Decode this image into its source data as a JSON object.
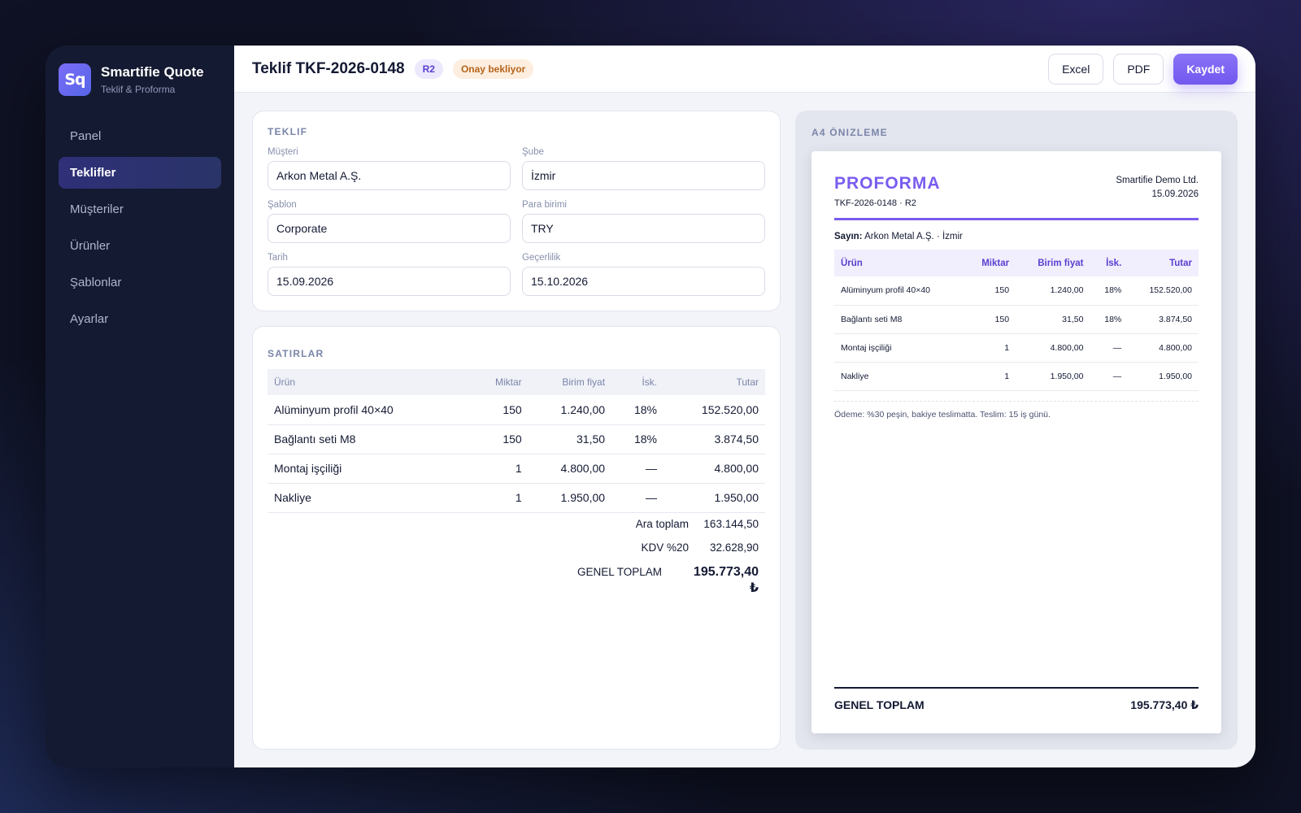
{
  "brand": {
    "logo": "Sq",
    "title": "Smartifie Quote",
    "subtitle": "Teklif & Proforma"
  },
  "sidebar": {
    "items": [
      {
        "label": "Panel",
        "active": false
      },
      {
        "label": "Teklifler",
        "active": true
      },
      {
        "label": "Müşteriler",
        "active": false
      },
      {
        "label": "Ürünler",
        "active": false
      },
      {
        "label": "Şablonlar",
        "active": false
      },
      {
        "label": "Ayarlar",
        "active": false
      }
    ]
  },
  "header": {
    "title": "Teklif TKF-2026-0148",
    "revision": "R2",
    "status": "Onay bekliyor",
    "excel_label": "Excel",
    "pdf_label": "PDF",
    "save_label": "Kaydet"
  },
  "form": {
    "section_title": "TEKLIF",
    "customer_label": "Müşteri",
    "customer_value": "Arkon Metal A.Ş.",
    "branch_label": "Şube",
    "branch_value": "İzmir",
    "template_label": "Şablon",
    "template_value": "Corporate",
    "currency_label": "Para birimi",
    "currency_value": "TRY",
    "date_label": "Tarih",
    "date_value": "15.09.2026",
    "validity_label": "Geçerlilik",
    "validity_value": "15.10.2026"
  },
  "lines": {
    "section_title": "SATIRLAR",
    "columns": [
      "Ürün",
      "Miktar",
      "Birim fiyat",
      "İsk.",
      "Tutar"
    ],
    "rows": [
      [
        "Alüminyum profil 40×40",
        "150",
        "1.240,00",
        "18%",
        "152.520,00"
      ],
      [
        "Bağlantı seti M8",
        "150",
        "31,50",
        "18%",
        "3.874,50"
      ],
      [
        "Montaj işçiliği",
        "1",
        "4.800,00",
        "—",
        "4.800,00"
      ],
      [
        "Nakliye",
        "1",
        "1.950,00",
        "—",
        "1.950,00"
      ]
    ],
    "subtotal_label": "Ara toplam",
    "subtotal_value": "163.144,50",
    "vat_label": "KDV %20",
    "vat_value": "32.628,90",
    "grand_label": "GENEL TOPLAM",
    "grand_value": "195.773,40 ₺"
  },
  "preview": {
    "section_title": "A4 ÖNIZLEME",
    "doc_title": "PROFORMA",
    "doc_ref": "TKF-2026-0148 · R2",
    "company": "Smartifie Demo Ltd.",
    "doc_date": "15.09.2026",
    "salutation_label": "Sayın:",
    "salutation_value": "Arkon Metal A.Ş. · İzmir",
    "columns": [
      "Ürün",
      "Miktar",
      "Birim fiyat",
      "İsk.",
      "Tutar"
    ],
    "rows": [
      [
        "Alüminyum profil 40×40",
        "150",
        "1.240,00",
        "18%",
        "152.520,00"
      ],
      [
        "Bağlantı seti M8",
        "150",
        "31,50",
        "18%",
        "3.874,50"
      ],
      [
        "Montaj işçiliği",
        "1",
        "4.800,00",
        "—",
        "4.800,00"
      ],
      [
        "Nakliye",
        "1",
        "1.950,00",
        "—",
        "1.950,00"
      ]
    ],
    "note": "Ödeme: %30 peşin, bakiye teslimatta. Teslim: 15 iş günü.",
    "grand_label": "GENEL TOPLAM",
    "grand_value": "195.773,40 ₺"
  },
  "colors": {
    "accent": "#7a5cf0",
    "sidebar_bg": "#141a31",
    "status_bg": "#fdeedf",
    "status_text": "#b5641b"
  }
}
